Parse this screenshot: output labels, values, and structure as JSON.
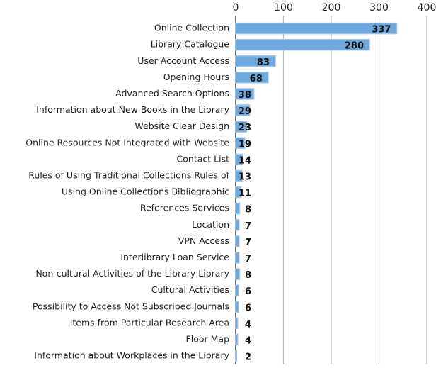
{
  "chart_data": {
    "type": "bar",
    "orientation": "horizontal",
    "categories": [
      "Online Collection",
      "Library Catalogue",
      "User Account Access",
      "Opening Hours",
      "Advanced Search Options",
      "Information about New Books in the Library",
      "Website Clear Design",
      "Online Resources Not Integrated with Website",
      "Contact List",
      "Rules of Using Traditional Collections Rules of",
      "Using Online Collections Bibliographic",
      "References Services",
      "Location",
      "VPN Access",
      "Interlibrary Loan Service",
      "Non-cultural Activities of the Library Library",
      "Cultural Activities",
      "Possibility to Access Not Subscribed Journals",
      "Items from Particular Research Area",
      "Floor Map",
      "Information about Workplaces in the Library"
    ],
    "values": [
      337,
      280,
      83,
      68,
      38,
      29,
      23,
      19,
      14,
      13,
      11,
      8,
      7,
      7,
      7,
      8,
      6,
      6,
      4,
      4,
      2
    ],
    "color": "#6fa8dc",
    "xlim": [
      0,
      400
    ],
    "xticks": [
      0,
      100,
      200,
      300,
      400
    ],
    "grid": true
  }
}
